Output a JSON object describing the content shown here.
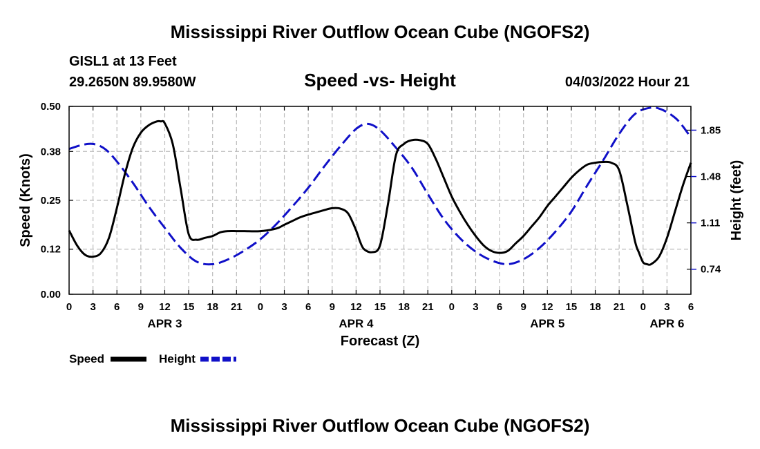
{
  "title": "Mississippi River Outflow Ocean Cube (NGOFS2)",
  "footer_title": "Mississippi River Outflow Ocean Cube (NGOFS2)",
  "station": "GISL1 at 13 Feet",
  "coords": "29.2650N  89.9580W",
  "subtitle": "Speed -vs- Height",
  "datetime": "04/03/2022 Hour 21",
  "legend": {
    "speed_label": "Speed",
    "height_label": "Height"
  },
  "colors": {
    "speed": "#000000",
    "height": "#1010c8",
    "grid": "#bbbbbb"
  },
  "chart_data": {
    "type": "line",
    "title": "Speed -vs- Height",
    "xlabel": "Forecast (Z)",
    "ylabel_left": "Speed (Knots)",
    "ylabel_right": "Height (feet)",
    "x_unit": "hours from APR 3 00Z",
    "xlim": [
      0,
      78
    ],
    "ylim_left": [
      0,
      0.5
    ],
    "ylim_right": [
      0.54,
      2.04
    ],
    "left_ticks": [
      0.0,
      0.12,
      0.25,
      0.38,
      0.5
    ],
    "left_tick_labels": [
      "0.00",
      "0.12",
      "0.25",
      "0.38",
      "0.50"
    ],
    "right_ticks": [
      0.74,
      1.11,
      1.48,
      1.85
    ],
    "right_tick_labels": [
      "0.74",
      "1.11",
      "1.48",
      "1.85"
    ],
    "x_ticks": [
      0,
      3,
      6,
      9,
      12,
      15,
      18,
      21,
      24,
      27,
      30,
      33,
      36,
      39,
      42,
      45,
      48,
      51,
      54,
      57,
      60,
      63,
      66,
      69,
      72,
      75,
      78
    ],
    "x_tick_labels": [
      "0",
      "3",
      "6",
      "9",
      "12",
      "15",
      "18",
      "21",
      "0",
      "3",
      "6",
      "9",
      "12",
      "15",
      "18",
      "21",
      "0",
      "3",
      "6",
      "9",
      "12",
      "15",
      "18",
      "21",
      "0",
      "3",
      "6"
    ],
    "day_labels": [
      {
        "x": 12,
        "label": "APR 3"
      },
      {
        "x": 36,
        "label": "APR 4"
      },
      {
        "x": 60,
        "label": "APR 5"
      },
      {
        "x": 75,
        "label": "APR 6"
      }
    ],
    "grid": true,
    "series": [
      {
        "name": "Speed",
        "axis": "left",
        "style": "solid",
        "x": [
          0,
          1,
          2,
          3,
          4,
          5,
          6,
          7,
          8,
          9,
          10,
          11,
          11.5,
          12,
          13,
          14,
          15,
          16,
          17,
          18,
          19,
          20,
          21,
          22,
          24,
          26,
          27,
          28,
          29,
          30,
          31,
          32,
          33,
          34,
          35,
          36,
          36.5,
          37,
          38,
          39,
          40,
          41,
          42,
          43,
          44,
          45,
          46,
          47,
          48,
          49,
          50,
          51,
          52,
          53,
          54,
          55,
          56,
          57,
          58,
          59,
          60,
          61,
          62,
          63,
          64,
          65,
          66,
          67,
          68,
          69,
          70,
          71,
          71.5,
          72,
          72.5,
          73,
          74,
          75,
          76,
          77,
          78
        ],
        "values": [
          0.17,
          0.13,
          0.105,
          0.1,
          0.11,
          0.15,
          0.23,
          0.32,
          0.39,
          0.43,
          0.45,
          0.46,
          0.46,
          0.455,
          0.4,
          0.28,
          0.16,
          0.145,
          0.15,
          0.155,
          0.165,
          0.168,
          0.168,
          0.168,
          0.168,
          0.175,
          0.185,
          0.195,
          0.205,
          0.212,
          0.218,
          0.224,
          0.229,
          0.228,
          0.215,
          0.17,
          0.14,
          0.12,
          0.112,
          0.13,
          0.24,
          0.37,
          0.4,
          0.41,
          0.41,
          0.4,
          0.36,
          0.31,
          0.26,
          0.22,
          0.185,
          0.155,
          0.13,
          0.115,
          0.11,
          0.115,
          0.135,
          0.155,
          0.18,
          0.205,
          0.235,
          0.26,
          0.285,
          0.31,
          0.33,
          0.345,
          0.35,
          0.352,
          0.35,
          0.33,
          0.24,
          0.14,
          0.11,
          0.085,
          0.08,
          0.08,
          0.1,
          0.15,
          0.22,
          0.29,
          0.35
        ]
      },
      {
        "name": "Height",
        "axis": "right",
        "style": "dashed",
        "x": [
          0,
          1.5,
          3,
          4.5,
          6,
          8,
          10,
          12,
          14,
          16,
          18,
          20,
          22,
          24,
          26,
          28,
          30,
          32,
          34,
          36,
          37.5,
          39,
          41,
          43,
          45,
          47,
          49,
          51,
          53,
          55,
          57,
          59,
          61,
          63,
          65,
          67,
          69,
          71,
          73,
          74.5,
          76,
          77,
          78
        ],
        "values": [
          1.7,
          1.73,
          1.74,
          1.7,
          1.6,
          1.43,
          1.24,
          1.07,
          0.91,
          0.8,
          0.78,
          0.82,
          0.89,
          0.98,
          1.1,
          1.24,
          1.39,
          1.56,
          1.72,
          1.86,
          1.9,
          1.85,
          1.71,
          1.55,
          1.34,
          1.14,
          0.99,
          0.88,
          0.81,
          0.78,
          0.82,
          0.91,
          1.04,
          1.2,
          1.41,
          1.61,
          1.82,
          1.98,
          2.03,
          2.01,
          1.95,
          1.88,
          1.79
        ]
      }
    ]
  }
}
